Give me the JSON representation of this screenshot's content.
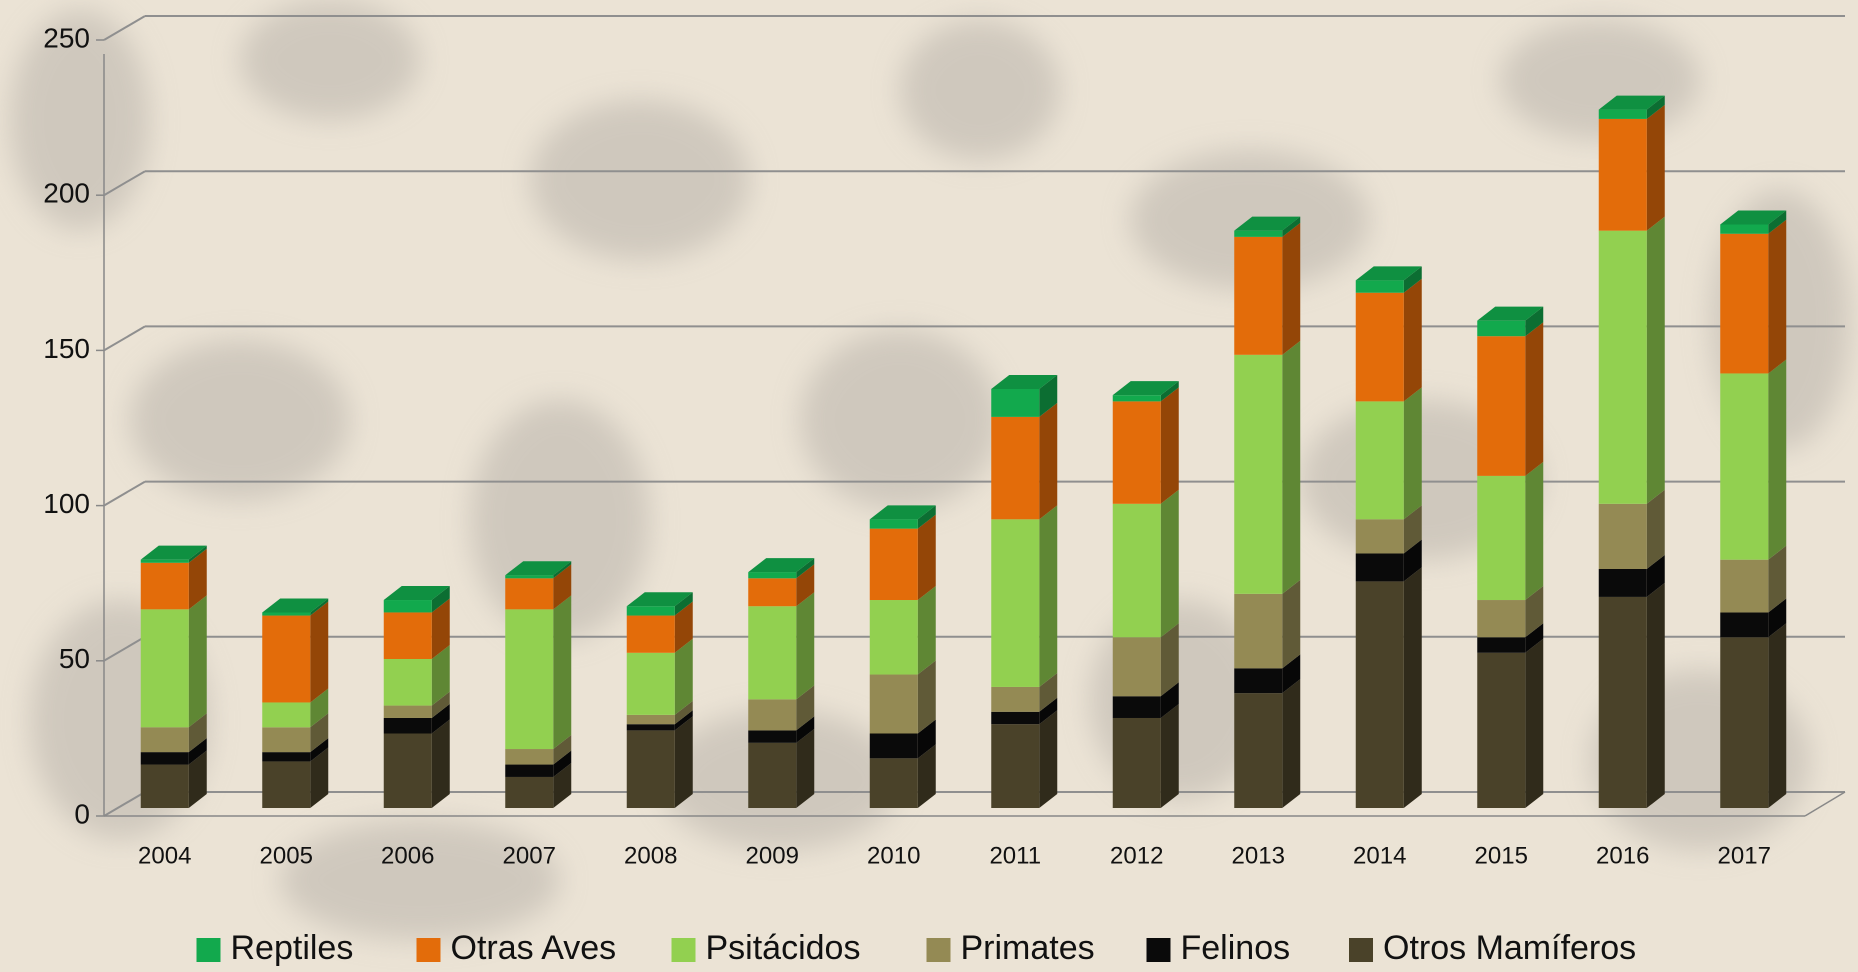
{
  "chart_data": {
    "type": "bar3d-stacked",
    "categories": [
      "2004",
      "2005",
      "2006",
      "2007",
      "2008",
      "2009",
      "2010",
      "2011",
      "2012",
      "2013",
      "2014",
      "2015",
      "2016",
      "2017"
    ],
    "series": [
      {
        "name": "Reptiles",
        "color": "#12a94d",
        "values": [
          1,
          1,
          4,
          1,
          3,
          2,
          3,
          9,
          2,
          2,
          4,
          5,
          3,
          3
        ]
      },
      {
        "name": "Otras Aves",
        "color": "#e36c0a",
        "values": [
          15,
          28,
          15,
          10,
          12,
          9,
          23,
          33,
          33,
          38,
          35,
          45,
          36,
          45
        ]
      },
      {
        "name": "Psitácidos",
        "color": "#92d050",
        "values": [
          38,
          8,
          15,
          45,
          20,
          30,
          24,
          54,
          43,
          77,
          38,
          40,
          88,
          60
        ]
      },
      {
        "name": "Primates",
        "color": "#948a54",
        "values": [
          8,
          8,
          4,
          5,
          3,
          10,
          19,
          8,
          19,
          24,
          11,
          12,
          21,
          17
        ]
      },
      {
        "name": "Felinos",
        "color": "#0a0a0a",
        "values": [
          4,
          3,
          5,
          4,
          2,
          4,
          8,
          4,
          7,
          8,
          9,
          5,
          9,
          8
        ]
      },
      {
        "name": "Otros Mamíferos",
        "color": "#4a4229",
        "values": [
          14,
          15,
          24,
          10,
          25,
          21,
          16,
          27,
          29,
          37,
          73,
          50,
          68,
          55
        ]
      }
    ],
    "ylim": [
      0,
      250
    ],
    "yticks": [
      0,
      50,
      100,
      150,
      200,
      250
    ],
    "grid": true,
    "legend": "bottom"
  }
}
